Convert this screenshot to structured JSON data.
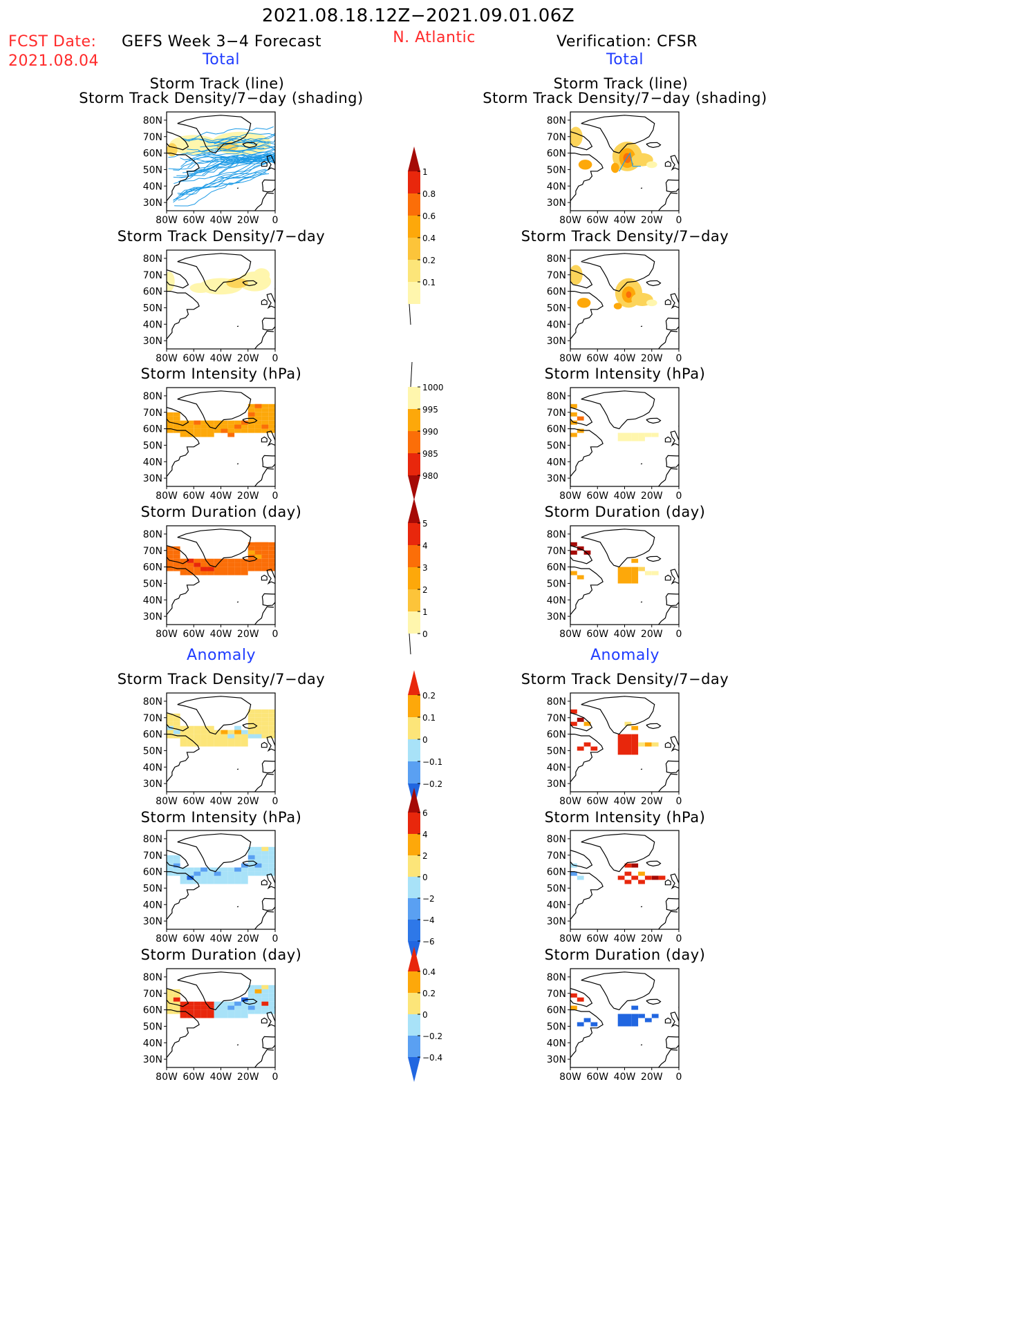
{
  "header": {
    "period": "2021.08.18.12Z−2021.09.01.06Z",
    "fcst_label": "FCST Date:",
    "fcst_date": "2021.08.04",
    "model_title": "GEFS Week 3−4 Forecast",
    "region": "N. Atlantic",
    "verification": "Verification: CFSR"
  },
  "sections": {
    "total": "Total",
    "anomaly": "Anomaly"
  },
  "panel_titles": {
    "track_line": "Storm Track (line)",
    "track_shading": "Storm Track Density/7−day (shading)",
    "density": "Storm Track Density/7−day",
    "intensity": "Storm Intensity (hPa)",
    "duration": "Storm Duration (day)"
  },
  "axes": {
    "lat_labels": [
      "80N",
      "70N",
      "60N",
      "50N",
      "40N",
      "30N"
    ],
    "lon_labels": [
      "80W",
      "60W",
      "40W",
      "20W",
      "0"
    ]
  },
  "colorbars": {
    "density": [
      "1",
      "0.8",
      "0.6",
      "0.4",
      "0.2",
      "0.1"
    ],
    "intensity": [
      "1000",
      "995",
      "990",
      "985",
      "980"
    ],
    "duration": [
      "5",
      "4",
      "3",
      "2",
      "1",
      "0"
    ],
    "density_anom": [
      "0.2",
      "0.1",
      "0",
      "−0.1",
      "−0.2"
    ],
    "intensity_anom": [
      "6",
      "4",
      "2",
      "0",
      "−2",
      "−4",
      "−6"
    ],
    "duration_anom": [
      "0.4",
      "0.2",
      "0",
      "−0.2",
      "−0.4"
    ]
  },
  "colors": {
    "title_red": "#ff2a2a",
    "title_blue": "#1f3cff",
    "track_line": "#1e9be6",
    "density_scale": [
      "#fff6ad",
      "#fcd45a",
      "#fda80a",
      "#fb6e08",
      "#e8270c",
      "#a50a06"
    ],
    "intensity_scale": [
      "#fff6ad",
      "#fda80a",
      "#fb6e08",
      "#e8270c",
      "#a50a06"
    ],
    "anom_scale": [
      "#2166e0",
      "#5aa0f2",
      "#a8e2f8",
      "#fce579",
      "#fda80a",
      "#e8270c",
      "#a50a06"
    ]
  }
}
